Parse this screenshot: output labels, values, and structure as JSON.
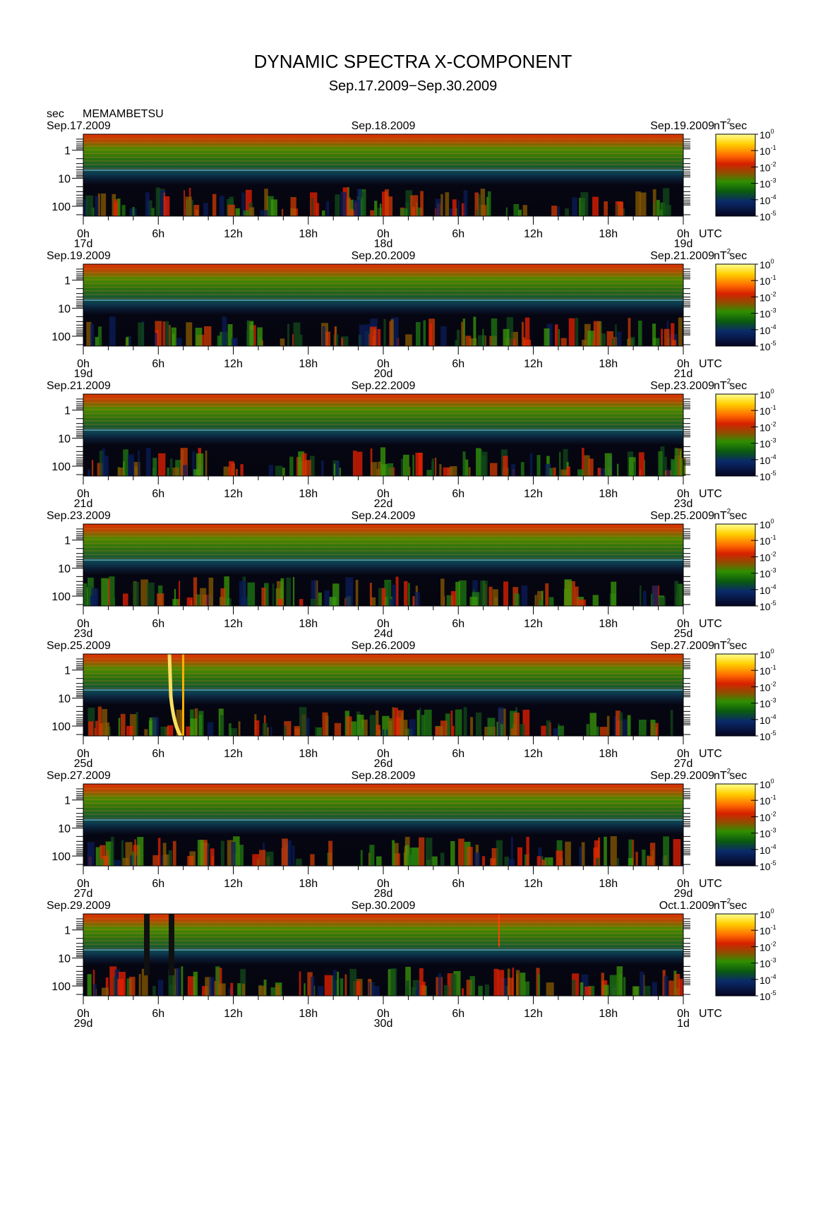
{
  "title": "DYNAMIC SPECTRA X-COMPONENT",
  "subtitle": "Sep.17.2009−Sep.30.2009",
  "y_unit": "sec",
  "station": "MEMAMBETSU",
  "colorbar_unit": "nT",
  "colorbar_unit_sup": "2",
  "colorbar_unit_suffix": "sec",
  "x_unit": "UTC",
  "hour_ticks": [
    "0h",
    "6h",
    "12h",
    "18h",
    "0h",
    "6h",
    "12h",
    "18h",
    "0h"
  ],
  "y_ticks": [
    "1",
    "10",
    "100"
  ],
  "colorbar_ticks": [
    {
      "base": "10",
      "exp": "0"
    },
    {
      "base": "10",
      "exp": "-1"
    },
    {
      "base": "10",
      "exp": "-2"
    },
    {
      "base": "10",
      "exp": "-3"
    },
    {
      "base": "10",
      "exp": "-4"
    },
    {
      "base": "10",
      "exp": "-5"
    }
  ],
  "colorbar_colors": [
    "#ffff80",
    "#ffd000",
    "#ff7000",
    "#e02000",
    "#a04000",
    "#2a8a00",
    "#0a5a10",
    "#0a2a6a",
    "#050520"
  ],
  "panels": [
    {
      "left_date": "Sep.17.2009",
      "mid_date": "Sep.18.2009",
      "right_date": "Sep.19.2009",
      "day_labels": [
        "17d",
        "18d",
        "19d"
      ]
    },
    {
      "left_date": "Sep.19.2009",
      "mid_date": "Sep.20.2009",
      "right_date": "Sep.21.2009",
      "day_labels": [
        "19d",
        "20d",
        "21d"
      ]
    },
    {
      "left_date": "Sep.21.2009",
      "mid_date": "Sep.22.2009",
      "right_date": "Sep.23.2009",
      "day_labels": [
        "21d",
        "22d",
        "23d"
      ]
    },
    {
      "left_date": "Sep.23.2009",
      "mid_date": "Sep.24.2009",
      "right_date": "Sep.25.2009",
      "day_labels": [
        "23d",
        "24d",
        "25d"
      ]
    },
    {
      "left_date": "Sep.25.2009",
      "mid_date": "Sep.26.2009",
      "right_date": "Sep.27.2009",
      "day_labels": [
        "25d",
        "26d",
        "27d"
      ]
    },
    {
      "left_date": "Sep.27.2009",
      "mid_date": "Sep.28.2009",
      "right_date": "Sep.29.2009",
      "day_labels": [
        "27d",
        "28d",
        "29d"
      ]
    },
    {
      "left_date": "Sep.29.2009",
      "mid_date": "Sep.30.2009",
      "right_date": "Oct.1.2009",
      "day_labels": [
        "29d",
        "30d",
        "1d"
      ]
    }
  ],
  "chart_data": {
    "type": "heatmap",
    "title": "DYNAMIC SPECTRA X-COMPONENT",
    "subtitle": "Sep.17.2009−Sep.30.2009",
    "station": "MEMAMBETSU",
    "xlabel": "UTC",
    "ylabel": "sec",
    "y_scale": "log",
    "ylim": [
      0.3,
      200
    ],
    "x_range_hours_per_panel": 48,
    "colorbar_label": "nT2 sec",
    "colorbar_scale": "log",
    "colorbar_range": [
      1e-05,
      1
    ],
    "panel_count": 7,
    "grid": false
  }
}
